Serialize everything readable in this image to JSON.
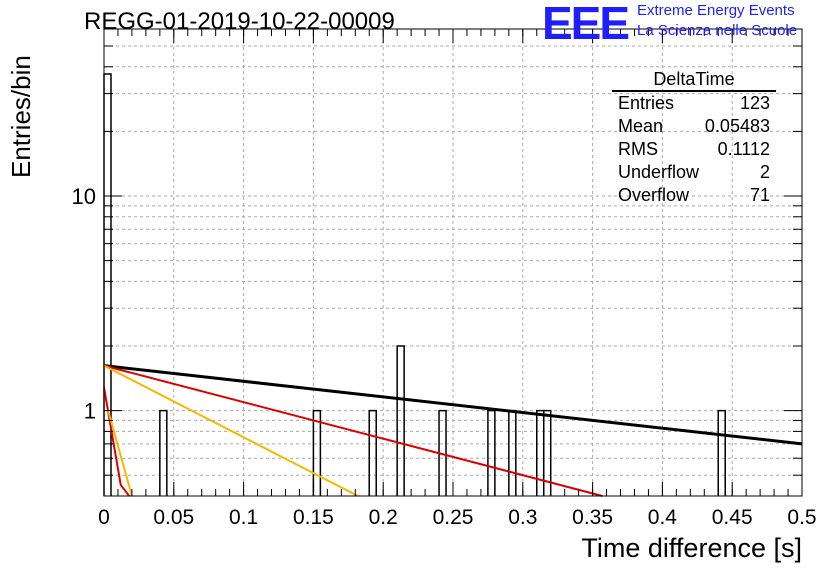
{
  "header": {
    "run_title": "REGG-01-2019-10-22-00009",
    "logo_text": "EEE",
    "brand_line1": "Extreme Energy Events",
    "brand_line2": "La Scienza nelle Scuole"
  },
  "stats_box": {
    "title": "DeltaTime",
    "rows": [
      {
        "label": "Entries",
        "value": "123"
      },
      {
        "label": "Mean",
        "value": "0.05483"
      },
      {
        "label": "RMS",
        "value": "0.1112"
      },
      {
        "label": "Underflow",
        "value": "2"
      },
      {
        "label": "Overflow",
        "value": "71"
      }
    ]
  },
  "colors": {
    "histogram": "#000000",
    "fit_black": "#000000",
    "fit_red": "#dd0000",
    "fit_orange": "#f5b800",
    "grid": "#aaaaaa",
    "logo": "#1e1eff"
  },
  "chart_data": {
    "type": "bar",
    "xlabel": "Time difference [s]",
    "ylabel": "Entries/bin",
    "xlim": [
      0,
      0.5
    ],
    "ylim": [
      0.4,
      60
    ],
    "yscale": "log",
    "grid": true,
    "x_ticks": [
      "0",
      "0.05",
      "0.1",
      "0.15",
      "0.2",
      "0.25",
      "0.3",
      "0.35",
      "0.4",
      "0.45",
      "0.5"
    ],
    "y_ticks": [
      "1",
      "10"
    ],
    "bin_width": 0.005,
    "bins": [
      {
        "x": 0.0,
        "value": 37
      },
      {
        "x": 0.04,
        "value": 1
      },
      {
        "x": 0.15,
        "value": 1
      },
      {
        "x": 0.19,
        "value": 1
      },
      {
        "x": 0.21,
        "value": 2
      },
      {
        "x": 0.24,
        "value": 1
      },
      {
        "x": 0.275,
        "value": 1
      },
      {
        "x": 0.29,
        "value": 1
      },
      {
        "x": 0.31,
        "value": 1
      },
      {
        "x": 0.315,
        "value": 1
      },
      {
        "x": 0.44,
        "value": 1
      }
    ],
    "fit_curves": [
      {
        "color": "#000000",
        "points": [
          [
            0,
            1.62
          ],
          [
            0.5,
            0.7
          ]
        ]
      },
      {
        "color": "#dd0000",
        "points": [
          [
            0,
            1.62
          ],
          [
            0.357,
            0.4
          ]
        ]
      },
      {
        "color": "#f5b800",
        "points": [
          [
            0,
            1.62
          ],
          [
            0.182,
            0.4
          ]
        ]
      },
      {
        "color": "#dd0000",
        "points": [
          [
            0,
            1.28
          ],
          [
            0.012,
            0.45
          ],
          [
            0.018,
            0.4
          ]
        ]
      },
      {
        "color": "#f5b800",
        "points": [
          [
            0.003,
            1.0
          ],
          [
            0.02,
            0.4
          ]
        ]
      }
    ]
  }
}
